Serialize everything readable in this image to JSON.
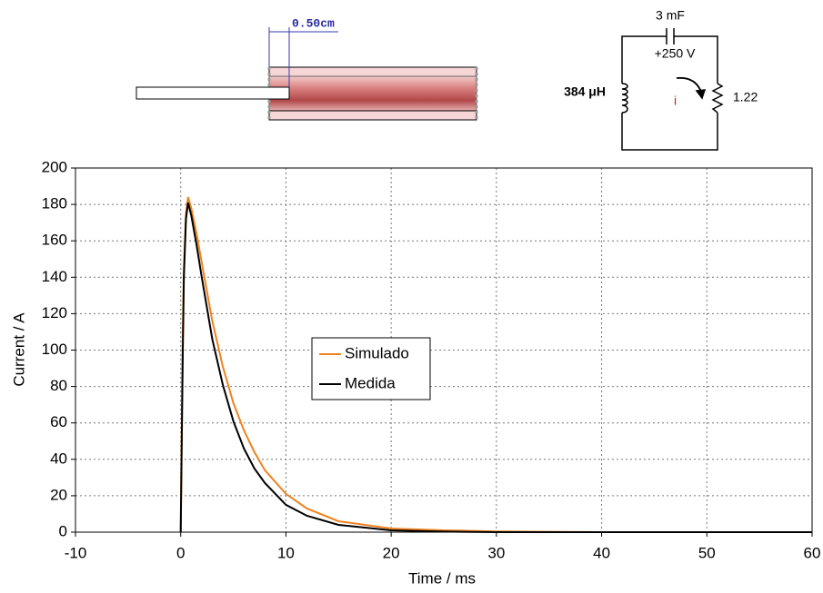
{
  "chart_data": {
    "type": "line",
    "x_label": "Time / ms",
    "y_label": "Current / A",
    "x": [
      0,
      0.1,
      0.2,
      0.3,
      0.5,
      0.7,
      1,
      1.5,
      2,
      3,
      4,
      5,
      6,
      7,
      8,
      10,
      12,
      15,
      20,
      25,
      30,
      40,
      50,
      60
    ],
    "series": [
      {
        "name": "Simulado",
        "color": "#f0821e",
        "values": [
          0,
          60,
          110,
          145,
          175,
          184,
          178,
          164,
          148,
          116,
          91,
          71,
          56,
          44,
          34,
          21,
          13,
          6,
          2,
          1,
          0.4,
          0,
          0,
          0
        ]
      },
      {
        "name": "Medida",
        "color": "#000000",
        "values": [
          0,
          50,
          100,
          140,
          172,
          181,
          174,
          158,
          140,
          106,
          81,
          61,
          46,
          35,
          27,
          15,
          9,
          4,
          1,
          0.3,
          0,
          0,
          0,
          0
        ]
      }
    ],
    "xlim": [
      -10,
      60
    ],
    "xticks": [
      -10,
      0,
      10,
      20,
      30,
      40,
      50,
      60
    ],
    "ylim": [
      0,
      200
    ],
    "yticks": [
      0,
      20,
      40,
      60,
      80,
      100,
      120,
      140,
      160,
      180,
      200
    ],
    "grid": true,
    "legend": "center"
  },
  "diagram": {
    "dimension": "0.50cm",
    "capacitance": "3 mF",
    "voltage": "+250 V",
    "inductance": "384 μH",
    "current": "i",
    "resistance": "1.22"
  }
}
